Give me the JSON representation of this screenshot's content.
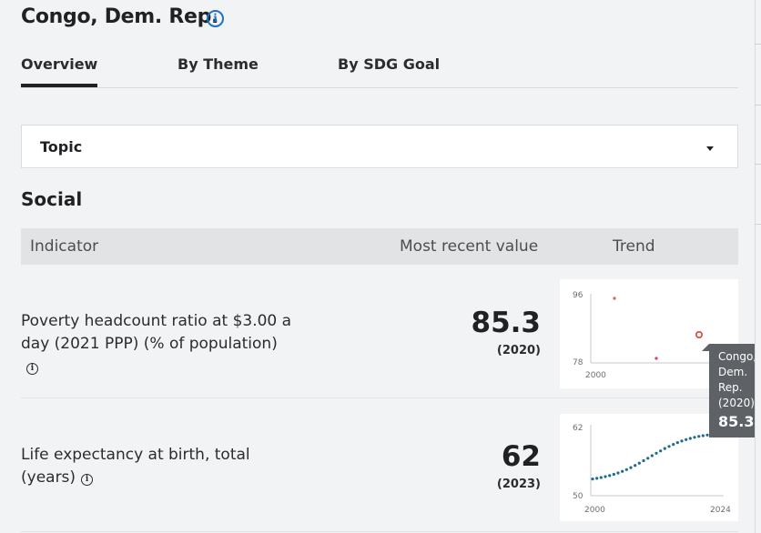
{
  "page": {
    "title": "Congo, Dem. Rep.",
    "tabs": [
      {
        "label": "Overview",
        "active": true
      },
      {
        "label": "By Theme",
        "active": false
      },
      {
        "label": "By SDG Goal",
        "active": false
      }
    ],
    "topic_select": {
      "label": "Topic"
    },
    "section_title": "Social"
  },
  "table": {
    "headers": {
      "indicator": "Indicator",
      "recent": "Most recent value",
      "trend": "Trend"
    },
    "rows": [
      {
        "indicator": "Poverty headcount ratio at $3.00 a day (2021 PPP) (% of population)",
        "value": "85.3",
        "year": "(2020)"
      },
      {
        "indicator": "Life expectancy at birth, total (years)",
        "value": "62",
        "year": "(2023)"
      }
    ]
  },
  "sparklines": {
    "poverty": {
      "ymax": "96",
      "ymin": "78",
      "xstart": "2000",
      "points": [
        [
          2004,
          95
        ],
        [
          2012,
          78.6
        ],
        [
          2020,
          85.3
        ]
      ],
      "color": "#e0403a"
    },
    "life": {
      "ymax": "62",
      "ymin": "50",
      "xstart": "2000",
      "xend": "2024",
      "color": "#1f6a8f"
    }
  },
  "tooltip": {
    "country": "Congo, Dem. Rep. (2020)",
    "value": "85.3"
  },
  "colors": {
    "accent": "#1a73c6",
    "tooltip_bg": "#5e6166"
  }
}
